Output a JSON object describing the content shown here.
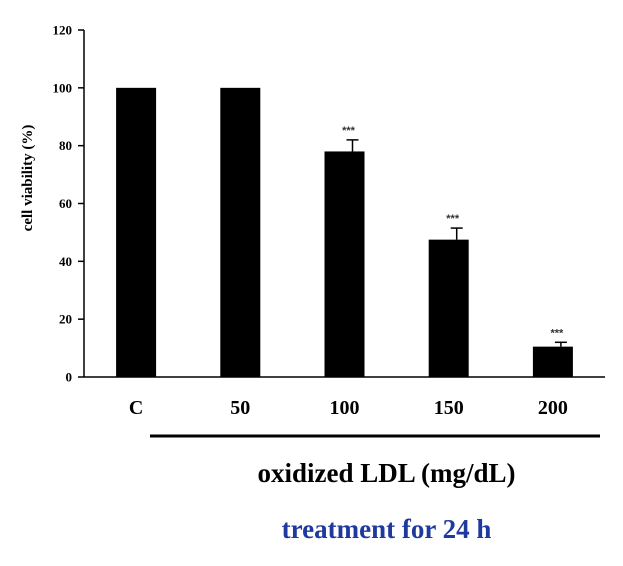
{
  "chart_data": {
    "type": "bar",
    "categories": [
      "C",
      "50",
      "100",
      "150",
      "200"
    ],
    "values": [
      100,
      100,
      78,
      47.5,
      10.5
    ],
    "errors": [
      0,
      0,
      4,
      4,
      1.5
    ],
    "significance": [
      "",
      "",
      "***",
      "***",
      "***"
    ],
    "ylabel": "cell viability (%)",
    "xlabel": "oxidized LDL (mg/dL)",
    "ylim": [
      0,
      120
    ],
    "yticks": [
      0,
      20,
      40,
      60,
      80,
      100,
      120
    ],
    "bar_color": "#000000",
    "grid": false
  },
  "annotation": {
    "treatment": "treatment for 24 h",
    "treatment_color": "#1f3a9e"
  }
}
